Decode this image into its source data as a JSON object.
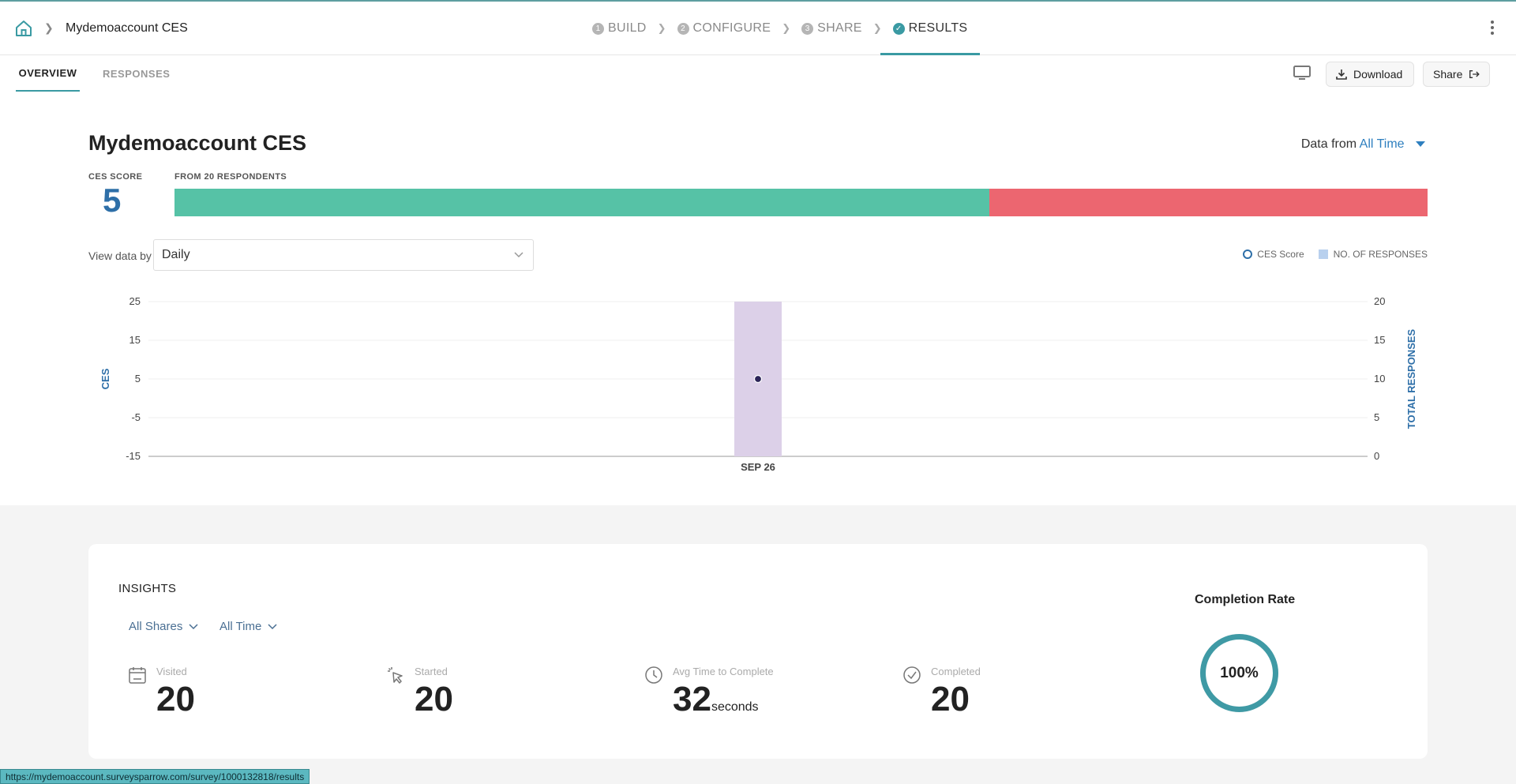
{
  "header": {
    "breadcrumb_title": "Mydemoaccount CES",
    "steps": [
      {
        "num": "1",
        "label": "BUILD"
      },
      {
        "num": "2",
        "label": "CONFIGURE"
      },
      {
        "num": "3",
        "label": "SHARE"
      },
      {
        "num": "✓",
        "label": "RESULTS"
      }
    ]
  },
  "subnav": {
    "tabs": [
      {
        "label": "OVERVIEW"
      },
      {
        "label": "RESPONSES"
      }
    ],
    "download_label": "Download",
    "share_label": "Share"
  },
  "summary": {
    "title": "Mydemoaccount CES",
    "data_from_label": "Data from",
    "data_from_value": "All Time",
    "ces_score_label": "CES SCORE",
    "ces_score": "5",
    "respondents_label": "FROM 20 RESPONDENTS",
    "bar_green_fraction": 0.65,
    "view_data_by_label": "View data by",
    "view_data_by_value": "Daily",
    "legend_ces": "CES Score",
    "legend_responses": "NO. OF RESPONSES",
    "colors": {
      "accent": "#3a9aa3",
      "green": "#56c2a6",
      "red": "#ec6670",
      "ces_blue": "#2e6fa8"
    }
  },
  "chart_data": {
    "type": "bar",
    "categories": [
      "SEP 26"
    ],
    "series": [
      {
        "name": "NO. OF RESPONSES",
        "axis": "right",
        "values": [
          20
        ]
      },
      {
        "name": "CES Score",
        "axis": "left",
        "values": [
          5
        ]
      }
    ],
    "ylabel": "CES",
    "y2label": "TOTAL RESPONSES",
    "ylim": [
      -15,
      25
    ],
    "y2lim": [
      0,
      20
    ],
    "yticks": [
      "25",
      "15",
      "5",
      "-5",
      "-15"
    ],
    "y2ticks": [
      "20",
      "15",
      "10",
      "5",
      "0"
    ],
    "grid": true
  },
  "insights": {
    "title": "INSIGHTS",
    "filter_shares": "All Shares",
    "filter_time": "All Time",
    "stats": [
      {
        "label": "Visited",
        "value": "20",
        "unit": ""
      },
      {
        "label": "Started",
        "value": "20",
        "unit": ""
      },
      {
        "label": "Avg Time to Complete",
        "value": "32",
        "unit": "seconds"
      },
      {
        "label": "Completed",
        "value": "20",
        "unit": ""
      }
    ],
    "completion_title": "Completion Rate",
    "completion_rate": "100%",
    "completion_fraction": 1.0
  },
  "status_url": "https://mydemoaccount.surveysparrow.com/survey/1000132818/results"
}
